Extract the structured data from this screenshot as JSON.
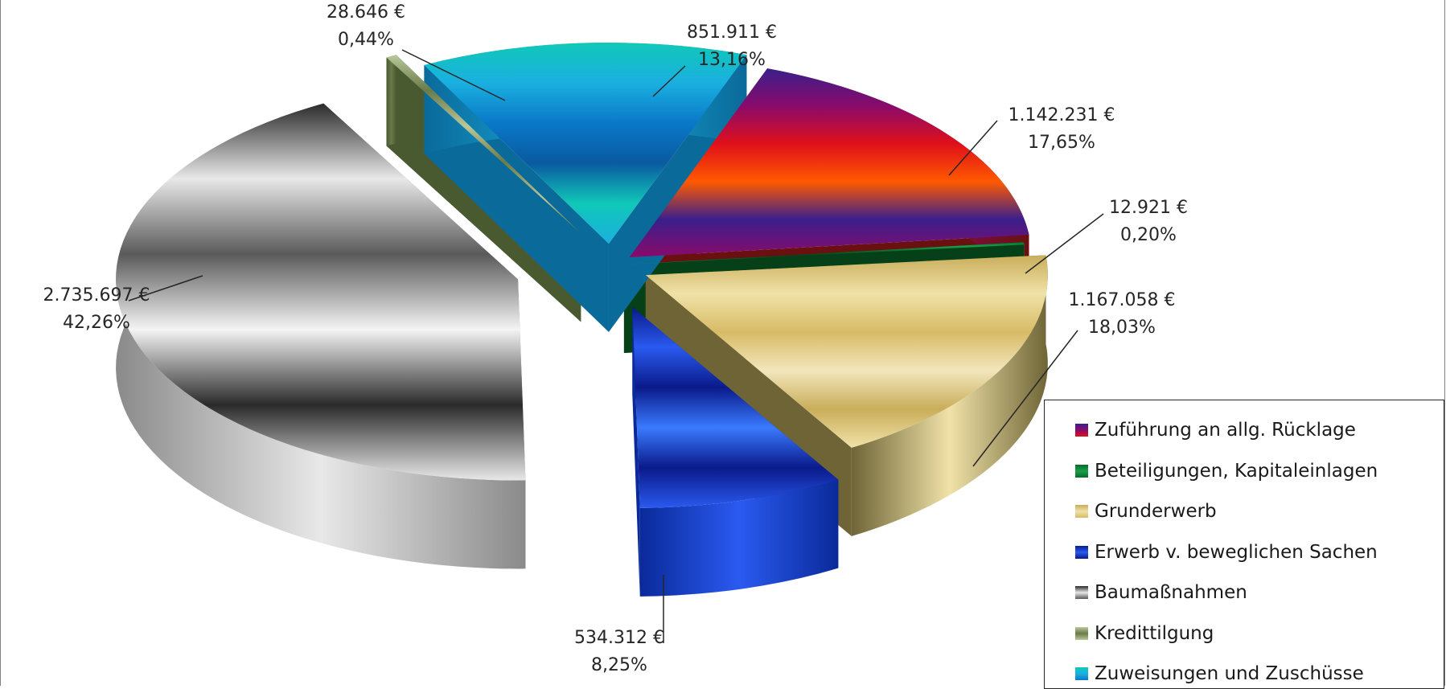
{
  "chart_data": {
    "type": "pie",
    "title": "",
    "legend_position": "bottom-right",
    "slices": [
      {
        "name": "Zuführung an allg. Rücklage",
        "value": 1142231,
        "value_label": "1.142.231 €",
        "percent_label": "17,65%",
        "colors": [
          "#3a1f8c",
          "#8a0a6a",
          "#e0101a",
          "#ff5a00"
        ],
        "side": "#6a1010"
      },
      {
        "name": "Beteiligungen, Kapitaleinlagen",
        "value": 12921,
        "value_label": "12.921 €",
        "percent_label": "0,20%",
        "colors": [
          "#0a6a2a",
          "#18a048",
          "#0a6a2a",
          "#064018"
        ],
        "side": "#064018"
      },
      {
        "name": "Grunderwerb",
        "value": 1167058,
        "value_label": "1.167.058 €",
        "percent_label": "18,03%",
        "colors": [
          "#c9ad5a",
          "#f0e2a8",
          "#d7bb66",
          "#f2e6bc"
        ],
        "side": "#6e6436"
      },
      {
        "name": "Erwerb v. beweglichen Sachen",
        "value": 534312,
        "value_label": "534.312 €",
        "percent_label": "8,25%",
        "colors": [
          "#0a1a8a",
          "#2a5af0",
          "#0a1a8a",
          "#3a7aff"
        ],
        "side": "#0a2a9a"
      },
      {
        "name": "Baumaßnahmen",
        "value": 2735697,
        "value_label": "2.735.697 €",
        "percent_label": "42,26%",
        "colors": [
          "#2a2a2a",
          "#e8e8e8",
          "#5a5a5a",
          "#f4f4f4"
        ],
        "side": "#8a8a8a"
      },
      {
        "name": "Kredittilgung",
        "value": 28646,
        "value_label": "28.646 €",
        "percent_label": "0,44%",
        "colors": [
          "#b8c89a",
          "#6a7a4a",
          "#b8c89a",
          "#6a7a4a"
        ],
        "side": "#4a5a30"
      },
      {
        "name": "Zuweisungen und Zuschüsse",
        "value": 851911,
        "value_label": "851.911 €",
        "percent_label": "13,16%",
        "colors": [
          "#10c8b8",
          "#1ab0e0",
          "#0a78c8",
          "#0a5aa0"
        ],
        "side": "#0a6a9a"
      }
    ]
  }
}
